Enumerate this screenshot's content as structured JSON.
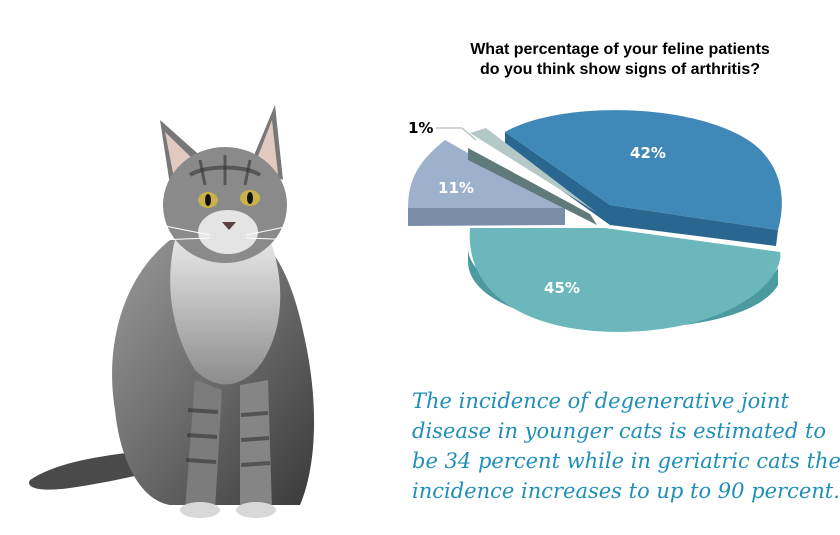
{
  "chart_data": {
    "type": "pie",
    "title_lines": [
      "What percentage of your feline patients",
      "do you think show signs of arthritis?"
    ],
    "slices": [
      {
        "label": "42%",
        "value": 42,
        "color": "#3f88b7",
        "side": "#2a6790"
      },
      {
        "label": "45%",
        "value": 45,
        "color": "#6bb7bb",
        "side": "#4a9aa0"
      },
      {
        "label": "11%",
        "value": 11,
        "color": "#9eb1cc",
        "side": "#7b8ea9"
      },
      {
        "label": "1%",
        "value": 1,
        "color": "#b3c9c8",
        "side": "#5f7a79"
      }
    ]
  },
  "caption_lines": [
    "The incidence of degenerative joint",
    "disease in younger cats is estimated to",
    "be 34 percent while in geriatric cats the",
    "incidence increases to up to 90 percent."
  ],
  "illustration": {
    "subject-icon": "cat-photo"
  }
}
